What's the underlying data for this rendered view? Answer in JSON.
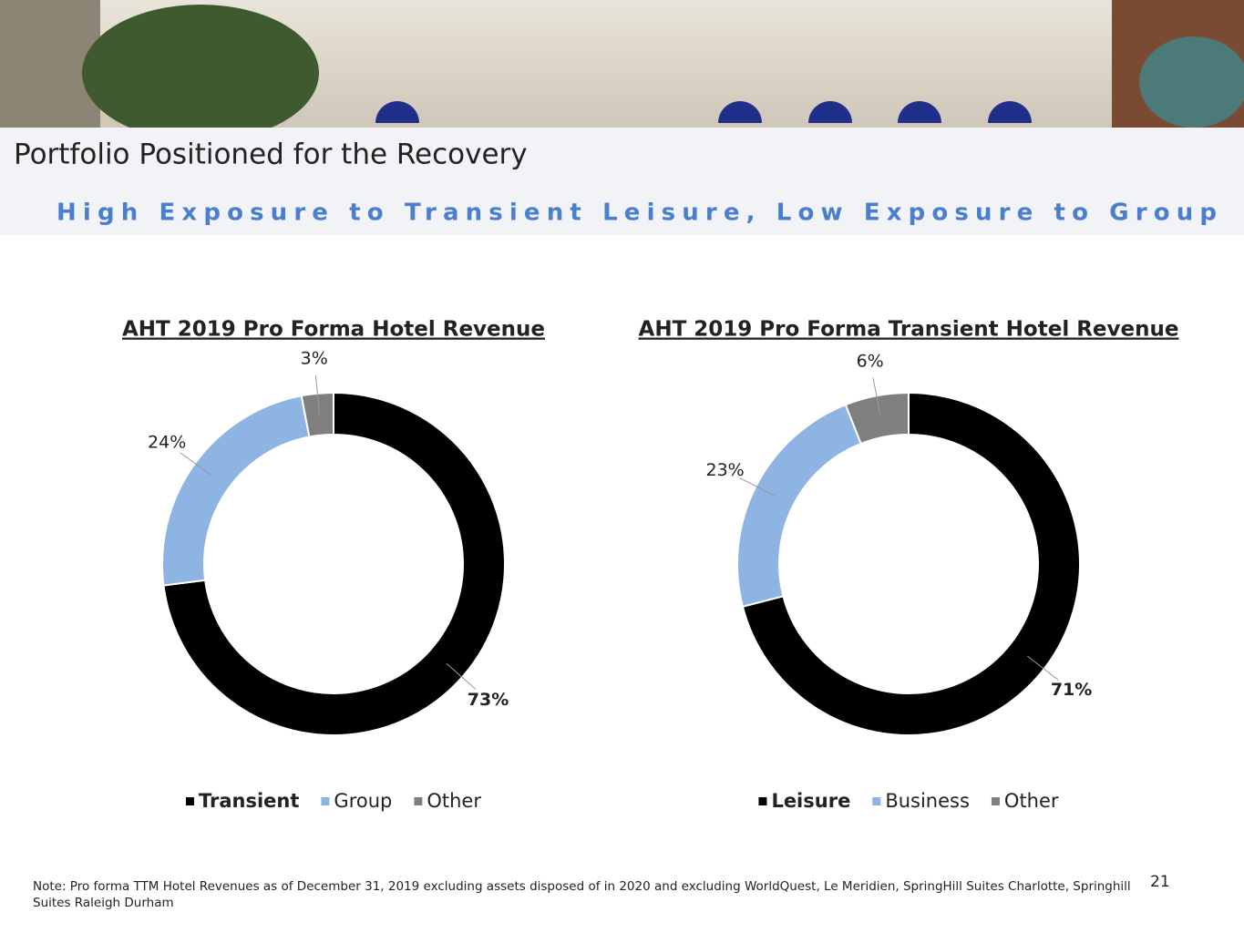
{
  "header": {
    "title": "Portfolio Positioned for the Recovery",
    "subtitle": "High Exposure to Transient Leisure, Low Exposure to Group"
  },
  "chart_data": [
    {
      "type": "pie",
      "donut": true,
      "title": "AHT 2019 Pro Forma Hotel Revenue",
      "categories": [
        "Transient",
        "Group",
        "Other"
      ],
      "values": [
        73,
        24,
        3
      ],
      "value_labels": [
        "73%",
        "24%",
        "3%"
      ],
      "colors": [
        "#000000",
        "#8eb4e3",
        "#7f7f7f"
      ]
    },
    {
      "type": "pie",
      "donut": true,
      "title": "AHT 2019 Pro Forma Transient Hotel Revenue",
      "categories": [
        "Leisure",
        "Business",
        "Other"
      ],
      "values": [
        71,
        23,
        6
      ],
      "value_labels": [
        "71%",
        "23%",
        "6%"
      ],
      "colors": [
        "#000000",
        "#8eb4e3",
        "#7f7f7f"
      ]
    }
  ],
  "footer": {
    "note": "Note: Pro forma TTM Hotel Revenues as of December 31, 2019 excluding assets disposed of in 2020 and excluding WorldQuest, Le Meridien, SpringHill Suites Charlotte, Springhill Suites Raleigh Durham",
    "page_number": "21"
  }
}
